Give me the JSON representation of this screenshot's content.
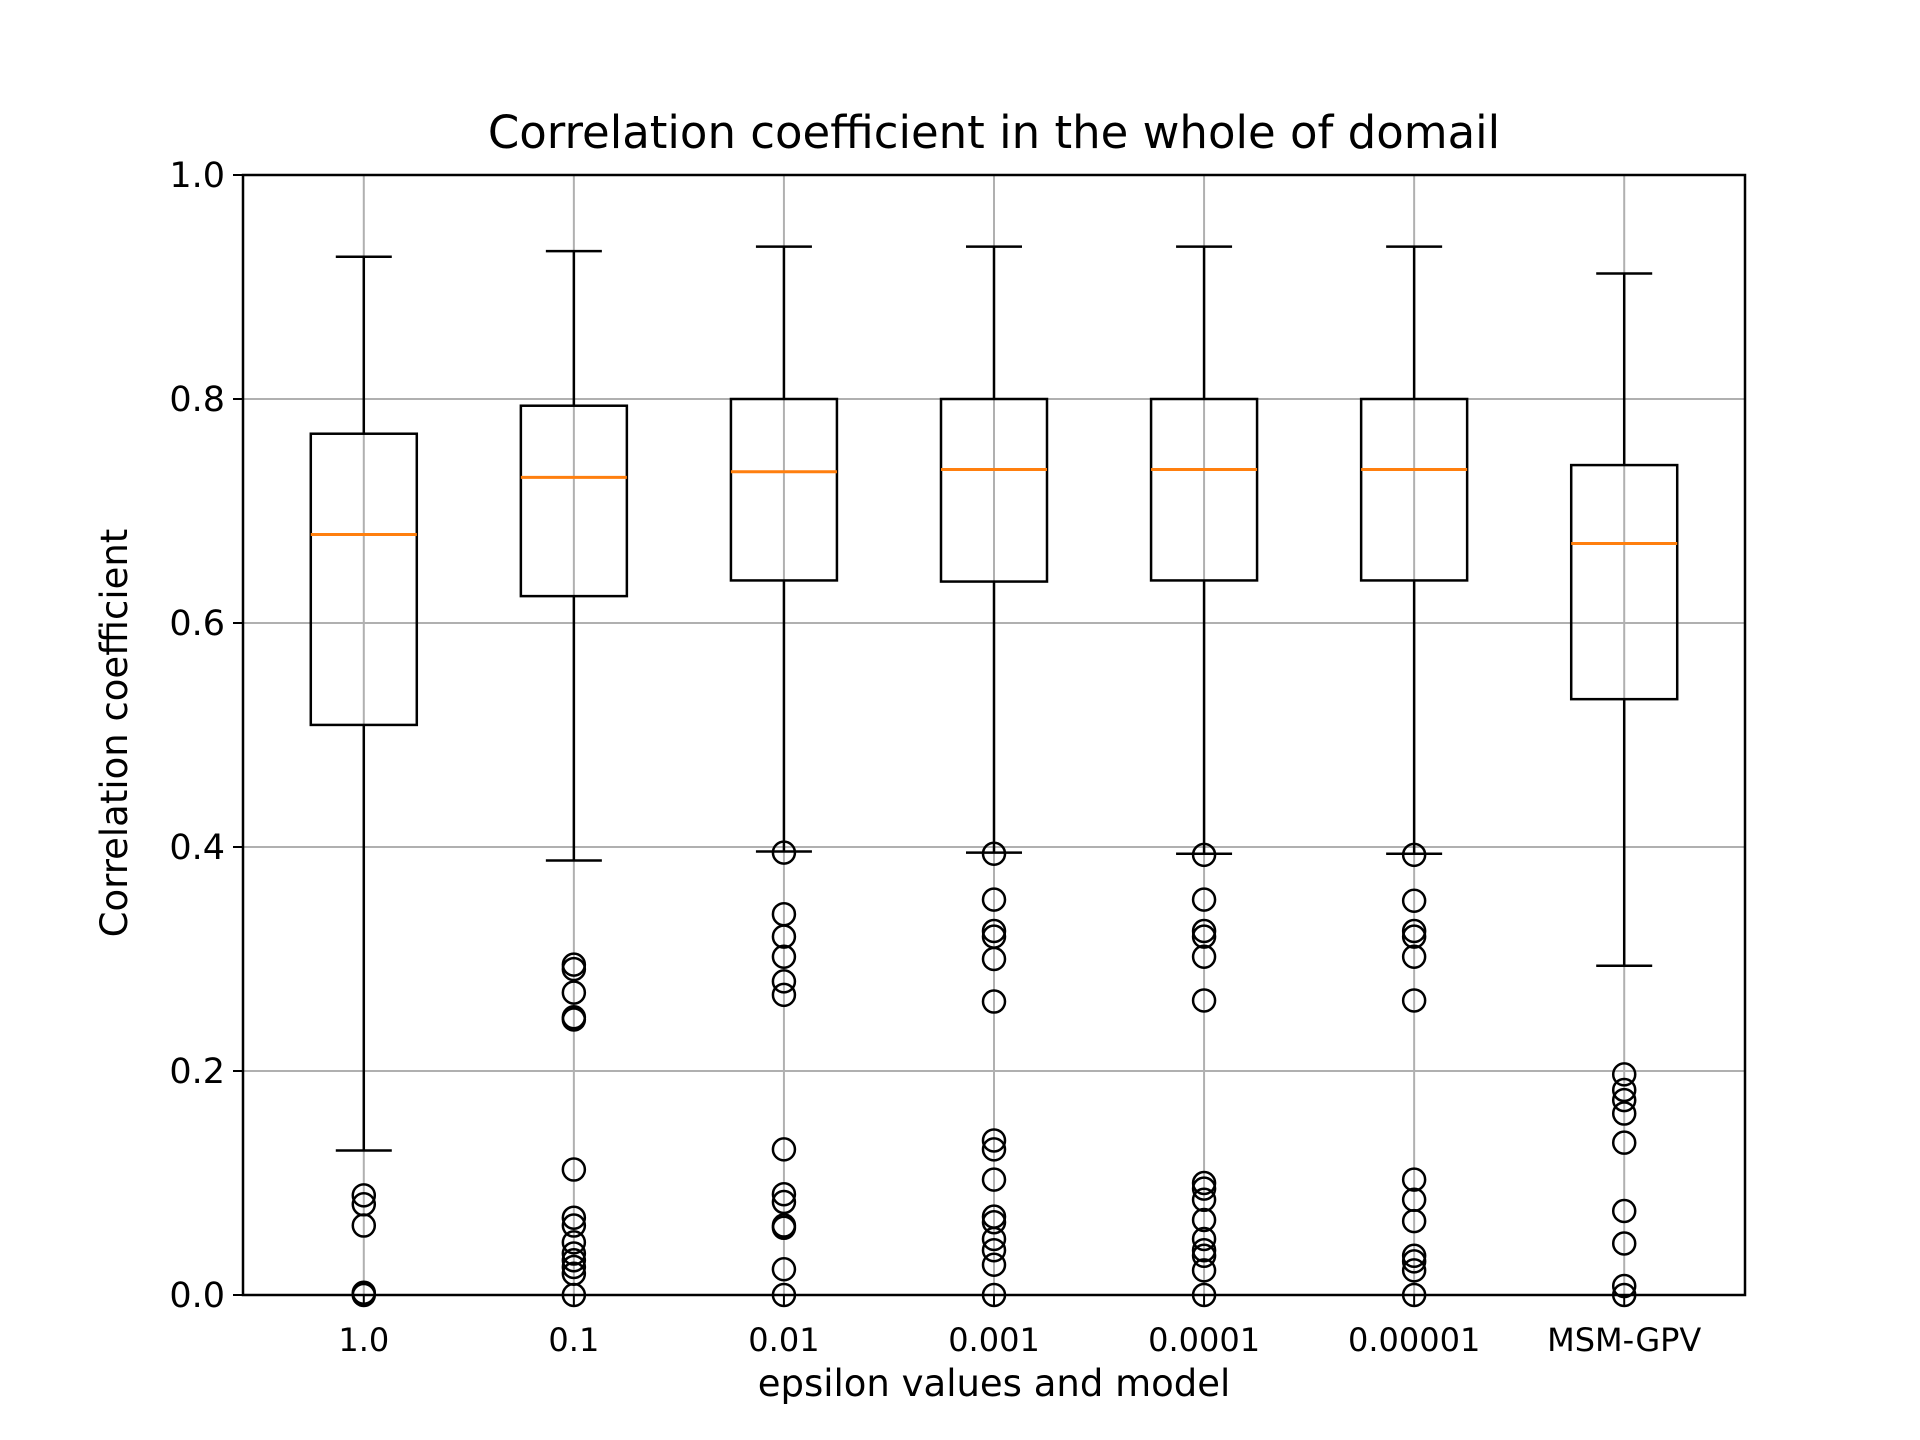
{
  "chart_data": {
    "type": "box",
    "title": "Correlation coefficient in the whole of domail",
    "xlabel": "epsilon values and model",
    "ylabel": "Correlation coefficient",
    "ylim": [
      0.0,
      1.0
    ],
    "yticks": [
      "0.0",
      "0.2",
      "0.4",
      "0.6",
      "0.8",
      "1.0"
    ],
    "grid": true,
    "colors": {
      "box": "#000000",
      "median": "#ff7f0e",
      "grid": "#b0b0b0"
    },
    "categories": [
      "1.0",
      "0.1",
      "0.01",
      "0.001",
      "0.0001",
      "0.00001",
      "MSM-GPV"
    ],
    "boxes": [
      {
        "whisker_low": 0.129,
        "q1": 0.509,
        "median": 0.679,
        "q3": 0.769,
        "whisker_high": 0.927,
        "fliers": [
          0.089,
          0.081,
          0.062,
          0.002,
          0.0
        ]
      },
      {
        "whisker_low": 0.388,
        "q1": 0.624,
        "median": 0.73,
        "q3": 0.794,
        "whisker_high": 0.932,
        "fliers": [
          0.295,
          0.291,
          0.27,
          0.248,
          0.246,
          0.112,
          0.069,
          0.062,
          0.047,
          0.037,
          0.031,
          0.025,
          0.019,
          0.0
        ]
      },
      {
        "whisker_low": 0.396,
        "q1": 0.638,
        "median": 0.735,
        "q3": 0.8,
        "whisker_high": 0.936,
        "fliers": [
          0.395,
          0.34,
          0.32,
          0.302,
          0.28,
          0.268,
          0.13,
          0.09,
          0.083,
          0.062,
          0.06,
          0.023,
          0.0
        ]
      },
      {
        "whisker_low": 0.395,
        "q1": 0.637,
        "median": 0.737,
        "q3": 0.8,
        "whisker_high": 0.936,
        "fliers": [
          0.394,
          0.353,
          0.325,
          0.32,
          0.3,
          0.262,
          0.138,
          0.13,
          0.103,
          0.07,
          0.065,
          0.05,
          0.04,
          0.027,
          0.0
        ]
      },
      {
        "whisker_low": 0.394,
        "q1": 0.638,
        "median": 0.737,
        "q3": 0.8,
        "whisker_high": 0.936,
        "fliers": [
          0.393,
          0.353,
          0.325,
          0.32,
          0.302,
          0.263,
          0.1,
          0.095,
          0.085,
          0.067,
          0.05,
          0.04,
          0.035,
          0.022,
          0.0
        ]
      },
      {
        "whisker_low": 0.394,
        "q1": 0.638,
        "median": 0.737,
        "q3": 0.8,
        "whisker_high": 0.936,
        "fliers": [
          0.393,
          0.352,
          0.325,
          0.32,
          0.302,
          0.263,
          0.103,
          0.085,
          0.066,
          0.035,
          0.03,
          0.022,
          0.0
        ]
      },
      {
        "whisker_low": 0.294,
        "q1": 0.532,
        "median": 0.671,
        "q3": 0.741,
        "whisker_high": 0.912,
        "fliers": [
          0.197,
          0.183,
          0.174,
          0.162,
          0.136,
          0.075,
          0.046,
          0.008,
          0.0
        ]
      }
    ]
  }
}
